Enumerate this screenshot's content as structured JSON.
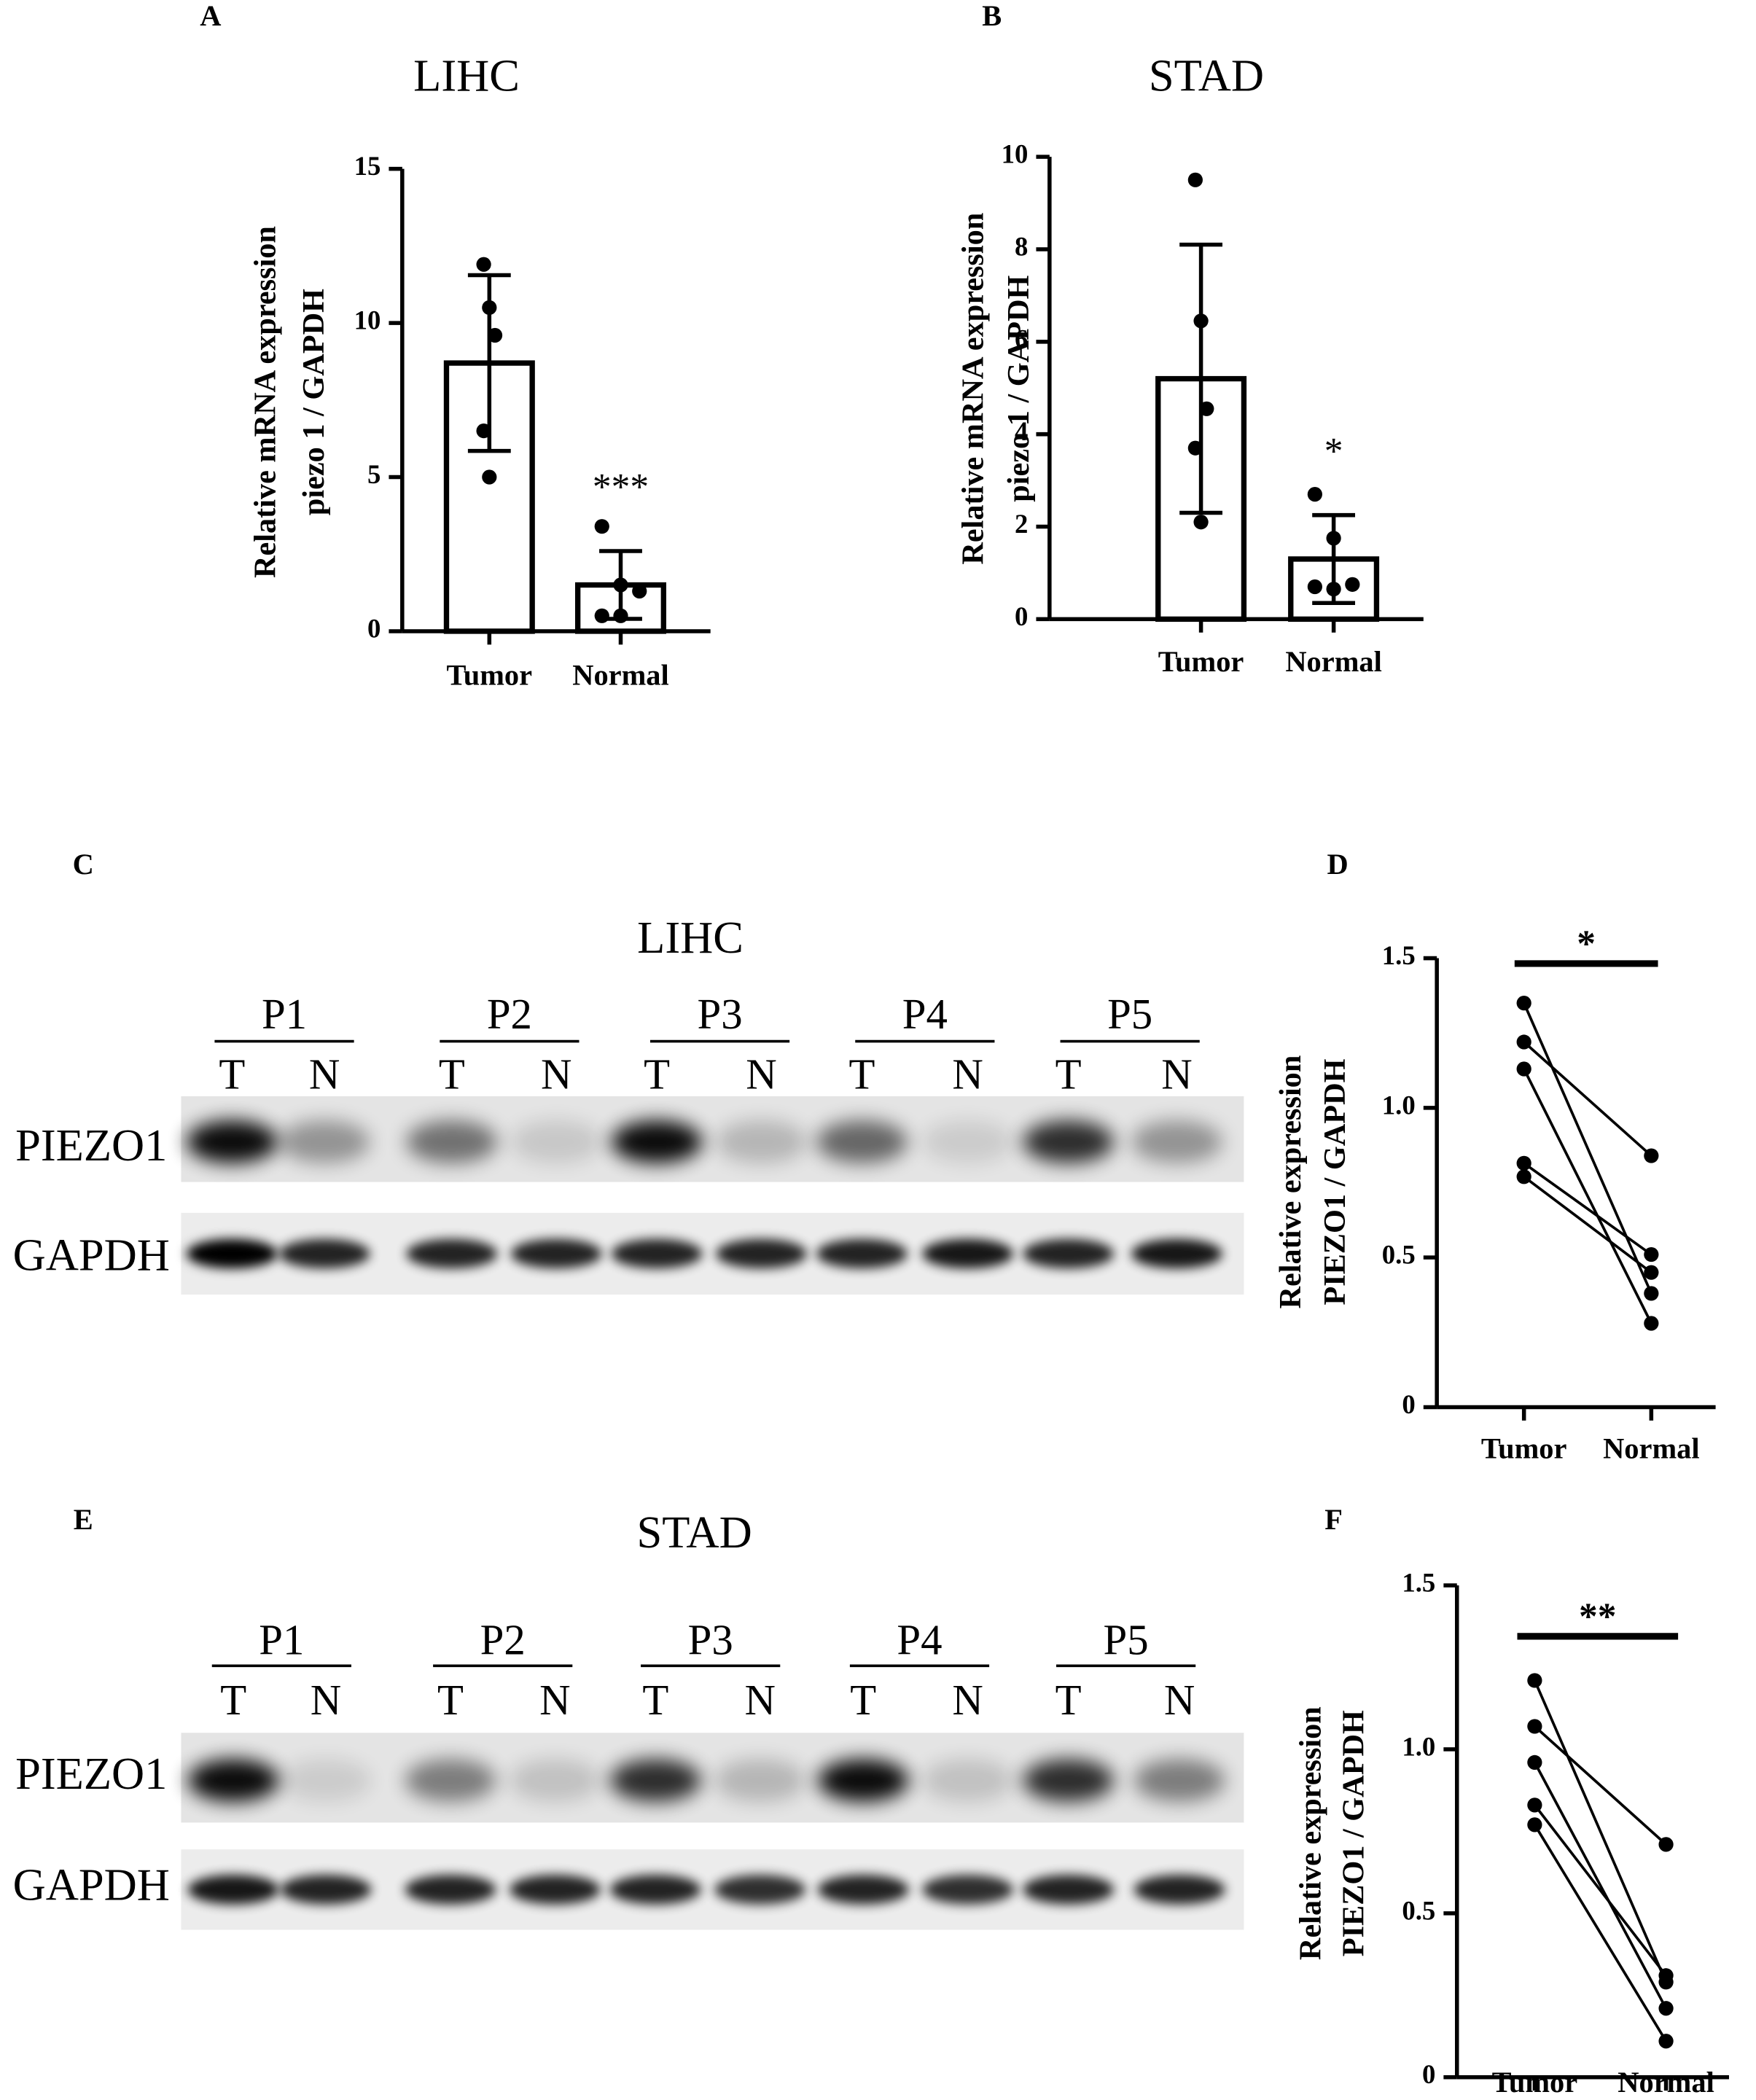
{
  "chart_data": [
    {
      "type": "bar",
      "panel": "A",
      "title": "LIHC",
      "ylabel": [
        "Relative mRNA expression",
        "piezo 1 / GAPDH"
      ],
      "categories": [
        "Tumor",
        "Normal"
      ],
      "values": [
        8.7,
        1.5
      ],
      "errors": [
        2.85,
        1.1
      ],
      "points": [
        [
          11.9,
          10.5,
          9.6,
          6.5,
          5.0
        ],
        [
          3.4,
          1.5,
          1.3,
          0.5,
          0.5
        ]
      ],
      "annotation": "***",
      "ylim": [
        0,
        15
      ],
      "yticks": [
        0,
        5,
        10,
        15
      ],
      "color": "#000000",
      "fill": "#ffffff"
    },
    {
      "type": "bar",
      "panel": "B",
      "title": "STAD",
      "ylabel": [
        "Relative mRNA expression",
        "piezo 1 / GAPDH"
      ],
      "categories": [
        "Tumor",
        "Normal"
      ],
      "values": [
        5.2,
        1.3
      ],
      "errors": [
        2.9,
        0.95
      ],
      "points": [
        [
          9.5,
          6.45,
          4.55,
          3.7,
          2.1
        ],
        [
          2.7,
          1.75,
          0.75,
          0.7,
          0.65
        ]
      ],
      "annotation": "*",
      "ylim": [
        0,
        10
      ],
      "yticks": [
        0,
        2,
        4,
        6,
        8,
        10
      ],
      "color": "#000000",
      "fill": "#ffffff"
    },
    {
      "type": "line",
      "panel": "D",
      "ylabel": [
        "Relative expression",
        "PIEZO1 / GAPDH"
      ],
      "categories": [
        "Tumor",
        "Normal"
      ],
      "series": [
        {
          "values": [
            1.35,
            0.38
          ]
        },
        {
          "values": [
            1.22,
            0.84
          ]
        },
        {
          "values": [
            1.13,
            0.28
          ]
        },
        {
          "values": [
            0.815,
            0.51
          ]
        },
        {
          "values": [
            0.77,
            0.45
          ]
        }
      ],
      "annotation": "*",
      "ylim": [
        0,
        1.5
      ],
      "yticks": [
        0,
        0.5,
        {
          "value": 1,
          "label": "1.0"
        },
        1.5
      ],
      "color": "#000000"
    },
    {
      "type": "line",
      "panel": "F",
      "ylabel": [
        "Relative expression",
        "PIEZO1 / GAPDH"
      ],
      "categories": [
        "Tumor",
        "Normal"
      ],
      "series": [
        {
          "values": [
            1.21,
            0.29
          ]
        },
        {
          "values": [
            1.07,
            0.71
          ]
        },
        {
          "values": [
            0.96,
            0.21
          ]
        },
        {
          "values": [
            0.83,
            0.31
          ]
        },
        {
          "values": [
            0.77,
            0.11
          ]
        }
      ],
      "annotation": "**",
      "ylim": [
        0,
        1.5
      ],
      "yticks": [
        0,
        0.5,
        {
          "value": 1,
          "label": "1.0"
        },
        1.5
      ],
      "color": "#000000"
    }
  ],
  "blots": [
    {
      "panel": "C",
      "title": "LIHC",
      "patients": [
        "P1",
        "P2",
        "P3",
        "P4",
        "P5"
      ],
      "lane_labels": [
        "T",
        "N"
      ],
      "rows": [
        "PIEZO1",
        "GAPDH"
      ]
    },
    {
      "panel": "E",
      "title": "STAD",
      "patients": [
        "P1",
        "P2",
        "P3",
        "P4",
        "P5"
      ],
      "lane_labels": [
        "T",
        "N"
      ],
      "rows": [
        "PIEZO1",
        "GAPDH"
      ]
    }
  ]
}
